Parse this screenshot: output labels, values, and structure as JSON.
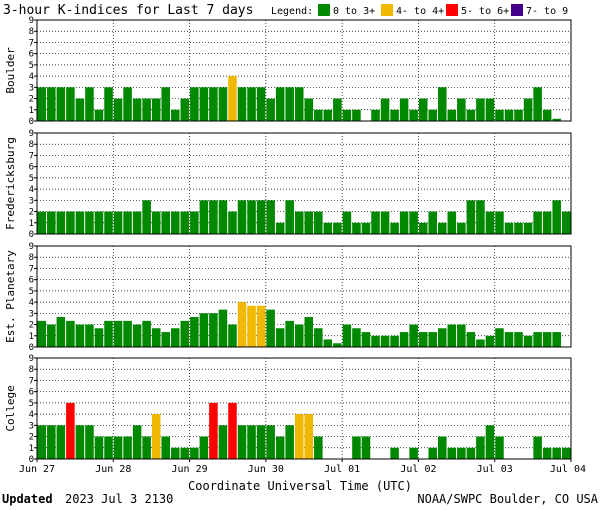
{
  "header": {
    "title": "3-hour K-indices for Last 7 days",
    "legend_label": "Legend:",
    "legend": [
      {
        "label": "0 to 3+",
        "color": "#008800"
      },
      {
        "label": "4- to 4+",
        "color": "#f0b800"
      },
      {
        "label": "5- to 6+",
        "color": "#ff0000"
      },
      {
        "label": "7- to 9",
        "color": "#440088"
      }
    ]
  },
  "footer": {
    "updated_label": "Updated",
    "updated_value": "2023 Jul  3 2130",
    "source": "NOAA/SWPC Boulder, CO USA"
  },
  "chart_data": {
    "type": "bar",
    "xlabel": "Coordinate Universal Time (UTC)",
    "x_ticks": [
      "Jun 27",
      "Jun 28",
      "Jun 29",
      "Jun 30",
      "Jul 01",
      "Jul 02",
      "Jul 03",
      "Jul 04"
    ],
    "y_ticks": [
      "0",
      "1",
      "2",
      "3",
      "4",
      "5",
      "6",
      "7",
      "8",
      "9"
    ],
    "ylim": [
      0,
      9
    ],
    "panels": [
      {
        "name": "Boulder",
        "values": [
          3,
          3,
          3,
          3,
          2,
          3,
          1,
          3,
          2,
          3,
          2,
          2,
          2,
          3,
          1,
          2,
          3,
          3,
          3,
          3,
          4,
          3,
          3,
          3,
          2,
          3,
          3,
          3,
          2,
          1,
          1,
          2,
          1,
          1,
          0,
          1,
          2,
          1,
          2,
          1,
          2,
          1,
          3,
          1,
          2,
          1,
          2,
          2,
          1,
          1,
          1,
          2,
          3,
          1,
          0.2,
          0
        ]
      },
      {
        "name": "Fredericksburg",
        "values": [
          2,
          2,
          2,
          2,
          2,
          2,
          2,
          2,
          2,
          2,
          2,
          3,
          2,
          2,
          2,
          2,
          2,
          3,
          3,
          3,
          2,
          3,
          3,
          3,
          3,
          1,
          3,
          2,
          2,
          2,
          1,
          1,
          2,
          1,
          1,
          2,
          2,
          1,
          2,
          2,
          1,
          2,
          1,
          2,
          1,
          3,
          3,
          2,
          2,
          1,
          1,
          1,
          2,
          2,
          3,
          2,
          0.2
        ]
      },
      {
        "name": "Est. Planetary",
        "values": [
          2.33,
          2,
          2.67,
          2.33,
          2,
          2,
          1.67,
          2.33,
          2.33,
          2.33,
          2,
          2.33,
          1.67,
          1.33,
          1.67,
          2.33,
          2.67,
          3,
          3,
          3.33,
          2,
          4,
          3.67,
          3.67,
          3.33,
          1.67,
          2.33,
          2,
          2.67,
          1.67,
          0.67,
          0.33,
          2,
          1.67,
          1.33,
          1,
          1,
          1,
          1.33,
          2,
          1.33,
          1.33,
          1.67,
          2,
          2,
          1.33,
          0.67,
          1,
          1.67,
          1.33,
          1.33,
          1,
          1.33,
          1.33,
          1.33
        ]
      },
      {
        "name": "College",
        "values": [
          3,
          3,
          3,
          5,
          3,
          3,
          2,
          2,
          2,
          2,
          3,
          2,
          4,
          2,
          1,
          1,
          1,
          2,
          5,
          3,
          5,
          3,
          3,
          3,
          3,
          2,
          3,
          4,
          4,
          2,
          0,
          0,
          0,
          2,
          2,
          0,
          0,
          1,
          0,
          1,
          0,
          1,
          2,
          1,
          1,
          1,
          2,
          3,
          2,
          0,
          0,
          0,
          2,
          1,
          1,
          1,
          0,
          1,
          1,
          0
        ]
      }
    ],
    "level_colors": {
      "low": "#008800",
      "mid": "#f0b800",
      "high": "#ff0000",
      "extreme": "#440088"
    }
  }
}
